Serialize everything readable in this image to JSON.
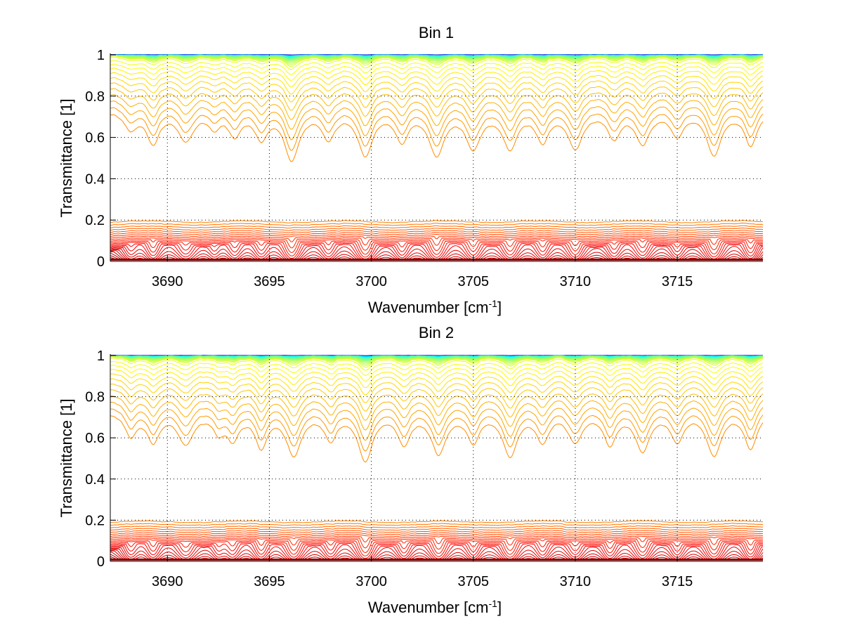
{
  "chart_data": [
    {
      "type": "line",
      "title": "Bin 1",
      "xlabel": "Wavenumber [cm^-1]",
      "xlabel_base": "Wavenumber [cm",
      "xlabel_sup": "-1",
      "xlabel_end": "]",
      "ylabel": "Transmittance [1]",
      "xlim": [
        3687.2,
        3719.2
      ],
      "ylim": [
        0,
        1
      ],
      "xticks": [
        3690,
        3695,
        3700,
        3705,
        3710,
        3715
      ],
      "xtick_labels": [
        "3690",
        "3695",
        "3700",
        "3705",
        "3710",
        "3715"
      ],
      "yticks": [
        0,
        0.2,
        0.4,
        0.6,
        0.8,
        1
      ],
      "ytick_labels": [
        "0",
        "0.2",
        "0.4",
        "0.6",
        "0.8",
        "1"
      ],
      "grid": true,
      "legend": "none",
      "colormap": "jet (blue at low optical depth → dark red at high optical depth)",
      "series_count": 60,
      "absorption_lines": [
        {
          "center": 3688.2,
          "strength": 0.6,
          "width": 0.35
        },
        {
          "center": 3689.3,
          "strength": 1.1,
          "width": 0.35
        },
        {
          "center": 3690.9,
          "strength": 1.0,
          "width": 0.45
        },
        {
          "center": 3692.3,
          "strength": 0.5,
          "width": 0.3
        },
        {
          "center": 3693.3,
          "strength": 0.8,
          "width": 0.35
        },
        {
          "center": 3694.6,
          "strength": 0.9,
          "width": 0.35
        },
        {
          "center": 3696.1,
          "strength": 1.8,
          "width": 0.4
        },
        {
          "center": 3697.9,
          "strength": 0.9,
          "width": 0.35
        },
        {
          "center": 3699.7,
          "strength": 1.6,
          "width": 0.4
        },
        {
          "center": 3701.5,
          "strength": 1.0,
          "width": 0.35
        },
        {
          "center": 3703.2,
          "strength": 1.6,
          "width": 0.4
        },
        {
          "center": 3705.0,
          "strength": 1.3,
          "width": 0.4
        },
        {
          "center": 3706.8,
          "strength": 1.3,
          "width": 0.4
        },
        {
          "center": 3708.4,
          "strength": 1.0,
          "width": 0.35
        },
        {
          "center": 3710.0,
          "strength": 1.3,
          "width": 0.4
        },
        {
          "center": 3711.9,
          "strength": 0.9,
          "width": 0.35
        },
        {
          "center": 3713.3,
          "strength": 1.1,
          "width": 0.4
        },
        {
          "center": 3715.0,
          "strength": 0.8,
          "width": 0.35
        },
        {
          "center": 3716.8,
          "strength": 1.6,
          "width": 0.4
        },
        {
          "center": 3718.6,
          "strength": 1.2,
          "width": 0.35
        }
      ],
      "continuum_depth_range": [
        0.0,
        4.6
      ]
    },
    {
      "type": "line",
      "title": "Bin 2",
      "xlabel": "Wavenumber [cm^-1]",
      "xlabel_base": "Wavenumber [cm",
      "xlabel_sup": "-1",
      "xlabel_end": "]",
      "ylabel": "Transmittance [1]",
      "xlim": [
        3687.2,
        3719.2
      ],
      "ylim": [
        0,
        1
      ],
      "xticks": [
        3690,
        3695,
        3700,
        3705,
        3710,
        3715
      ],
      "xtick_labels": [
        "3690",
        "3695",
        "3700",
        "3705",
        "3710",
        "3715"
      ],
      "yticks": [
        0,
        0.2,
        0.4,
        0.6,
        0.8,
        1
      ],
      "ytick_labels": [
        "0",
        "0.2",
        "0.4",
        "0.6",
        "0.8",
        "1"
      ],
      "grid": true,
      "legend": "none",
      "colormap": "jet (blue at low optical depth → dark red at high optical depth)",
      "series_count": 60,
      "absorption_lines": [
        {
          "center": 3688.2,
          "strength": 0.8,
          "width": 0.35
        },
        {
          "center": 3689.3,
          "strength": 1.0,
          "width": 0.35
        },
        {
          "center": 3690.9,
          "strength": 1.1,
          "width": 0.45
        },
        {
          "center": 3692.5,
          "strength": 0.6,
          "width": 0.3
        },
        {
          "center": 3693.2,
          "strength": 0.9,
          "width": 0.35
        },
        {
          "center": 3694.6,
          "strength": 1.2,
          "width": 0.35
        },
        {
          "center": 3696.2,
          "strength": 1.6,
          "width": 0.4
        },
        {
          "center": 3698.0,
          "strength": 0.9,
          "width": 0.35
        },
        {
          "center": 3699.7,
          "strength": 1.8,
          "width": 0.4
        },
        {
          "center": 3701.6,
          "strength": 1.1,
          "width": 0.35
        },
        {
          "center": 3703.3,
          "strength": 1.5,
          "width": 0.4
        },
        {
          "center": 3705.0,
          "strength": 1.0,
          "width": 0.35
        },
        {
          "center": 3706.8,
          "strength": 1.6,
          "width": 0.4
        },
        {
          "center": 3708.4,
          "strength": 1.0,
          "width": 0.35
        },
        {
          "center": 3710.0,
          "strength": 1.0,
          "width": 0.4
        },
        {
          "center": 3711.7,
          "strength": 1.1,
          "width": 0.35
        },
        {
          "center": 3713.3,
          "strength": 1.4,
          "width": 0.4
        },
        {
          "center": 3715.0,
          "strength": 1.0,
          "width": 0.35
        },
        {
          "center": 3716.8,
          "strength": 1.6,
          "width": 0.4
        },
        {
          "center": 3718.6,
          "strength": 1.3,
          "width": 0.35
        }
      ],
      "continuum_depth_range": [
        0.0,
        4.6
      ]
    }
  ]
}
